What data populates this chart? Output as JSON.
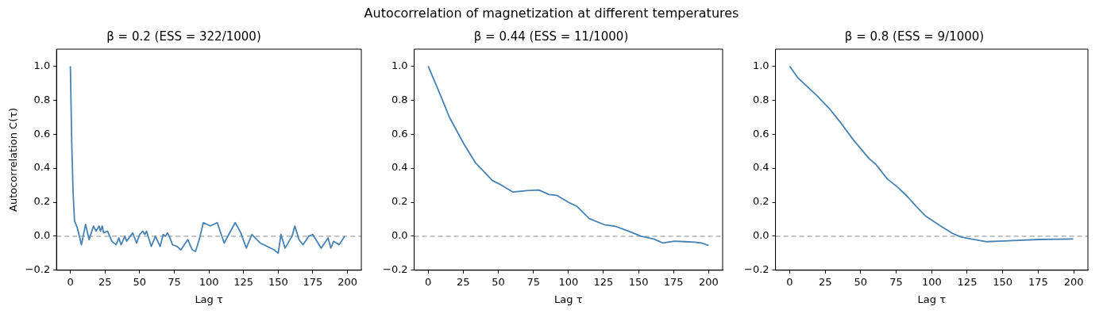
{
  "chart_data": [
    {
      "type": "line",
      "title": "β = 0.2 (ESS = 322/1000)",
      "xlabel": "Lag τ",
      "ylabel": "Autocorrelation C(τ)",
      "annotations": [
        "Autocorrelation of magnetization at different temperatures"
      ],
      "grid": false,
      "legend": false,
      "xlim": [
        -10,
        210
      ],
      "xticks": [
        0,
        25,
        50,
        75,
        100,
        125,
        150,
        175,
        200
      ],
      "ylim": [
        -0.2,
        1.1
      ],
      "yticks": [
        {
          "value": -0.2,
          "label": "−0.2"
        },
        {
          "value": 0,
          "label": "0.0"
        },
        {
          "value": 0.2,
          "label": "0.2"
        },
        {
          "value": 0.4,
          "label": "0.4"
        },
        {
          "value": 0.6,
          "label": "0.6"
        },
        {
          "value": 0.8,
          "label": "0.8"
        },
        {
          "value": 1,
          "label": "1.0"
        }
      ],
      "ref_lines": [
        {
          "axis": "y",
          "value": 0,
          "color": "#b0b0b0",
          "line_style": "dashed"
        }
      ],
      "series": [
        {
          "color": "#4682b4",
          "x": [
            0,
            1,
            2,
            3,
            5,
            8,
            11,
            13.5,
            16.7,
            18.5,
            20.8,
            21.7,
            23,
            24,
            26.8,
            30,
            33,
            35,
            36.6,
            39.4,
            40.6,
            45,
            47.8,
            50,
            52.3,
            53.8,
            55,
            58.4,
            61.4,
            64.8,
            67,
            68.8,
            70,
            71.4,
            73.7,
            77,
            79.8,
            84.7,
            88,
            90.3,
            93,
            96,
            101,
            106,
            111,
            119,
            123,
            127,
            131,
            137,
            142,
            147,
            150,
            152,
            155,
            160,
            162,
            165,
            168,
            172,
            175,
            181,
            186,
            188,
            190,
            194,
            198
          ],
          "values": [
            1.0,
            0.55,
            0.25,
            0.09,
            0.05,
            -0.05,
            0.07,
            -0.02,
            0.06,
            0.03,
            0.06,
            0.03,
            0.06,
            0.02,
            0.03,
            -0.03,
            -0.05,
            -0.01,
            -0.05,
            0.0,
            -0.03,
            0.02,
            -0.04,
            0.01,
            0.03,
            0.01,
            0.03,
            -0.06,
            0.0,
            -0.06,
            0.01,
            0.0,
            0.02,
            0.0,
            -0.05,
            -0.06,
            -0.08,
            -0.02,
            -0.08,
            -0.09,
            -0.02,
            0.08,
            0.06,
            0.08,
            -0.04,
            0.08,
            0.02,
            -0.07,
            0.01,
            -0.04,
            -0.06,
            -0.08,
            -0.1,
            0.01,
            -0.07,
            0.0,
            0.06,
            -0.02,
            -0.05,
            0.0,
            0.01,
            -0.07,
            -0.01,
            -0.07,
            -0.03,
            -0.05,
            0.0
          ]
        }
      ]
    },
    {
      "type": "line",
      "title": "β = 0.44 (ESS = 11/1000)",
      "xlabel": "Lag τ",
      "grid": false,
      "legend": false,
      "xlim": [
        -10,
        210
      ],
      "xticks": [
        0,
        25,
        50,
        75,
        100,
        125,
        150,
        175,
        200
      ],
      "ylim": [
        -0.2,
        1.1
      ],
      "yticks": [
        {
          "value": -0.2,
          "label": "−0.2"
        },
        {
          "value": 0,
          "label": "0.0"
        },
        {
          "value": 0.2,
          "label": "0.2"
        },
        {
          "value": 0.4,
          "label": "0.4"
        },
        {
          "value": 0.6,
          "label": "0.6"
        },
        {
          "value": 0.8,
          "label": "0.8"
        },
        {
          "value": 1,
          "label": "1.0"
        }
      ],
      "ref_lines": [
        {
          "axis": "y",
          "value": 0,
          "color": "#b0b0b0",
          "line_style": "dashed"
        }
      ],
      "series": [
        {
          "color": "#4682b4",
          "x": [
            0,
            8.7,
            15.1,
            25.3,
            33.6,
            39.2,
            45.6,
            53,
            60.4,
            65,
            70.6,
            78.9,
            86.3,
            91.8,
            100,
            106.5,
            114.8,
            125.8,
            133.2,
            142.4,
            151.7,
            160.9,
            167.4,
            175.7,
            183,
            190,
            195,
            200
          ],
          "values": [
            1.0,
            0.83,
            0.7,
            0.545,
            0.433,
            0.385,
            0.329,
            0.297,
            0.26,
            0.264,
            0.268,
            0.272,
            0.245,
            0.24,
            0.2,
            0.173,
            0.104,
            0.067,
            0.059,
            0.032,
            0.0,
            -0.016,
            -0.04,
            -0.029,
            -0.032,
            -0.035,
            -0.04,
            -0.055
          ]
        }
      ]
    },
    {
      "type": "line",
      "title": "β = 0.8 (ESS = 9/1000)",
      "xlabel": "Lag τ",
      "grid": false,
      "legend": false,
      "xlim": [
        -10,
        210
      ],
      "xticks": [
        0,
        25,
        50,
        75,
        100,
        125,
        150,
        175,
        200
      ],
      "ylim": [
        -0.2,
        1.1
      ],
      "yticks": [
        {
          "value": -0.2,
          "label": "−0.2"
        },
        {
          "value": 0,
          "label": "0.0"
        },
        {
          "value": 0.2,
          "label": "0.2"
        },
        {
          "value": 0.4,
          "label": "0.4"
        },
        {
          "value": 0.6,
          "label": "0.6"
        },
        {
          "value": 0.8,
          "label": "0.8"
        },
        {
          "value": 1,
          "label": "1.0"
        }
      ],
      "ref_lines": [
        {
          "axis": "y",
          "value": 0,
          "color": "#b0b0b0",
          "line_style": "dashed"
        }
      ],
      "series": [
        {
          "color": "#4682b4",
          "x": [
            0,
            5.9,
            18.8,
            28,
            35.4,
            44.6,
            50.2,
            55.8,
            60.4,
            68.7,
            76.1,
            83.5,
            89,
            95.5,
            105.6,
            114.8,
            120.3,
            127.7,
            138.8,
            148,
            175.7,
            199.7
          ],
          "values": [
            1.0,
            0.93,
            0.83,
            0.75,
            0.673,
            0.569,
            0.513,
            0.457,
            0.425,
            0.337,
            0.288,
            0.228,
            0.176,
            0.12,
            0.064,
            0.016,
            -0.003,
            -0.016,
            -0.032,
            -0.029,
            -0.019,
            -0.016
          ]
        }
      ]
    }
  ]
}
